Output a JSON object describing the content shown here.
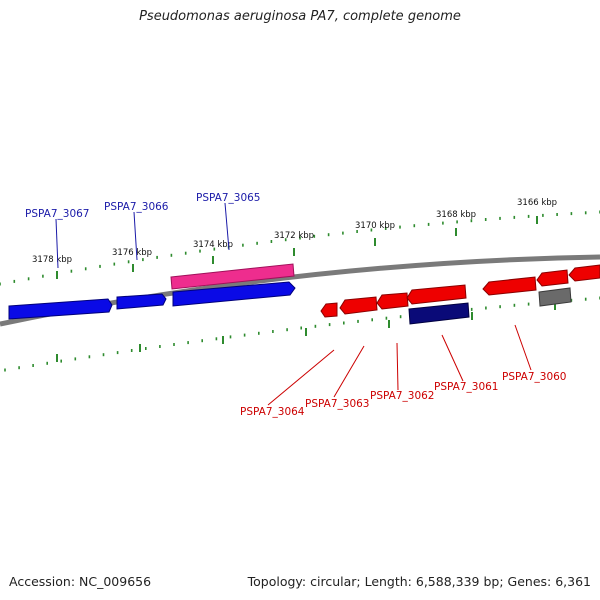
{
  "title": "Pseudomonas aeruginosa PA7, complete genome",
  "footer": {
    "accession": "Accession: NC_009656",
    "summary": "Topology: circular; Length: 6,588,339 bp; Genes: 6,361"
  },
  "colors": {
    "backbone": "#7a7a7a",
    "tick": "#2e8b2e",
    "forward_label": "#1a1aa8",
    "reverse_label": "#cc0000",
    "blue_gene": "#0a0ae6",
    "pink_gene": "#ee2d8e",
    "navy_gene": "#0a0a78",
    "red_gene": "#ee0000",
    "grey_gene": "#6a6a6a"
  },
  "ticks": [
    {
      "kbp": 3178,
      "label": "3178 kbp"
    },
    {
      "kbp": 3176,
      "label": "3176 kbp"
    },
    {
      "kbp": 3174,
      "label": "3174 kbp"
    },
    {
      "kbp": 3172,
      "label": "3172 kbp"
    },
    {
      "kbp": 3170,
      "label": "3170 kbp"
    },
    {
      "kbp": 3168,
      "label": "3168 kbp"
    },
    {
      "kbp": 3166,
      "label": "3166 kbp"
    }
  ],
  "gene_labels": [
    {
      "name": "PSPA7_3067",
      "strand": "forward"
    },
    {
      "name": "PSPA7_3066",
      "strand": "forward"
    },
    {
      "name": "PSPA7_3065",
      "strand": "forward"
    },
    {
      "name": "PSPA7_3064",
      "strand": "reverse"
    },
    {
      "name": "PSPA7_3063",
      "strand": "reverse"
    },
    {
      "name": "PSPA7_3062",
      "strand": "reverse"
    },
    {
      "name": "PSPA7_3061",
      "strand": "reverse"
    },
    {
      "name": "PSPA7_3060",
      "strand": "reverse"
    }
  ]
}
